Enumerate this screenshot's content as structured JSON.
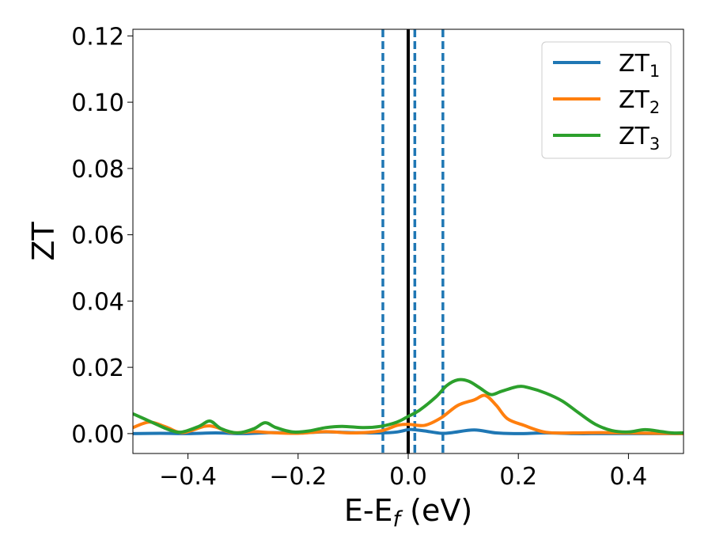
{
  "chart_data": {
    "type": "line",
    "xlabel": {
      "main": "E-E",
      "sub": "f",
      "unit": " (eV)"
    },
    "ylabel": "ZT",
    "xlim": [
      -0.5,
      0.5
    ],
    "ylim": [
      -0.006,
      0.122
    ],
    "x_ticks": [
      -0.4,
      -0.2,
      0.0,
      0.2,
      0.4
    ],
    "x_tick_labels": [
      "−0.4",
      "−0.2",
      "0.0",
      "0.2",
      "0.4"
    ],
    "y_ticks": [
      0.0,
      0.02,
      0.04,
      0.06,
      0.08,
      0.1,
      0.12
    ],
    "y_tick_labels": [
      "0.00",
      "0.02",
      "0.04",
      "0.06",
      "0.08",
      "0.10",
      "0.12"
    ],
    "grid": false,
    "legend_position": "top-right",
    "vlines": [
      {
        "x": 0.0,
        "style": "solid",
        "color": "#000000"
      },
      {
        "x": -0.046,
        "style": "dashed",
        "color": "#1f77b4"
      },
      {
        "x": 0.012,
        "style": "dashed",
        "color": "#1f77b4"
      },
      {
        "x": 0.063,
        "style": "dashed",
        "color": "#1f77b4"
      }
    ],
    "series": [
      {
        "name": "ZT",
        "sub": "1",
        "color": "#1f77b4",
        "points": [
          [
            -0.5,
            0.0
          ],
          [
            -0.45,
            0.0001
          ],
          [
            -0.4,
            0.0
          ],
          [
            -0.35,
            0.0002
          ],
          [
            -0.3,
            0.0
          ],
          [
            -0.25,
            0.0003
          ],
          [
            -0.2,
            0.0002
          ],
          [
            -0.15,
            0.0005
          ],
          [
            -0.1,
            0.0003
          ],
          [
            -0.05,
            0.0002
          ],
          [
            -0.02,
            0.0005
          ],
          [
            0.0,
            0.0012
          ],
          [
            0.01,
            0.0012
          ],
          [
            0.03,
            0.0008
          ],
          [
            0.06,
            0.0001
          ],
          [
            0.08,
            0.0003
          ],
          [
            0.12,
            0.0011
          ],
          [
            0.16,
            0.0002
          ],
          [
            0.2,
            0.0
          ],
          [
            0.25,
            0.0002
          ],
          [
            0.3,
            0.0
          ],
          [
            0.35,
            0.0
          ],
          [
            0.4,
            0.0
          ],
          [
            0.45,
            0.0
          ],
          [
            0.5,
            0.0
          ]
        ]
      },
      {
        "name": "ZT",
        "sub": "2",
        "color": "#ff7f0e",
        "points": [
          [
            -0.5,
            0.0018
          ],
          [
            -0.47,
            0.0035
          ],
          [
            -0.44,
            0.002
          ],
          [
            -0.41,
            0.0003
          ],
          [
            -0.37,
            0.0022
          ],
          [
            -0.35,
            0.002
          ],
          [
            -0.32,
            0.0003
          ],
          [
            -0.28,
            0.0006
          ],
          [
            -0.25,
            0.0003
          ],
          [
            -0.2,
            0.0001
          ],
          [
            -0.15,
            0.0006
          ],
          [
            -0.1,
            0.0002
          ],
          [
            -0.05,
            0.0008
          ],
          [
            -0.02,
            0.0025
          ],
          [
            0.0,
            0.0028
          ],
          [
            0.03,
            0.0025
          ],
          [
            0.06,
            0.0048
          ],
          [
            0.09,
            0.0085
          ],
          [
            0.12,
            0.0102
          ],
          [
            0.14,
            0.0115
          ],
          [
            0.16,
            0.0085
          ],
          [
            0.18,
            0.0045
          ],
          [
            0.21,
            0.0025
          ],
          [
            0.25,
            0.0004
          ],
          [
            0.3,
            0.0002
          ],
          [
            0.35,
            0.0003
          ],
          [
            0.4,
            0.0002
          ],
          [
            0.45,
            0.0001
          ],
          [
            0.5,
            0.0
          ]
        ]
      },
      {
        "name": "ZT",
        "sub": "3",
        "color": "#2ca02c",
        "points": [
          [
            -0.5,
            0.006
          ],
          [
            -0.48,
            0.0045
          ],
          [
            -0.46,
            0.003
          ],
          [
            -0.43,
            0.0009
          ],
          [
            -0.41,
            0.0005
          ],
          [
            -0.38,
            0.0022
          ],
          [
            -0.36,
            0.0038
          ],
          [
            -0.34,
            0.0015
          ],
          [
            -0.31,
            0.0002
          ],
          [
            -0.28,
            0.0015
          ],
          [
            -0.26,
            0.0033
          ],
          [
            -0.24,
            0.0018
          ],
          [
            -0.21,
            0.0005
          ],
          [
            -0.18,
            0.0008
          ],
          [
            -0.15,
            0.0018
          ],
          [
            -0.12,
            0.0022
          ],
          [
            -0.08,
            0.0018
          ],
          [
            -0.05,
            0.0022
          ],
          [
            -0.02,
            0.0035
          ],
          [
            0.0,
            0.0052
          ],
          [
            0.02,
            0.007
          ],
          [
            0.05,
            0.011
          ],
          [
            0.07,
            0.0145
          ],
          [
            0.09,
            0.0162
          ],
          [
            0.11,
            0.0158
          ],
          [
            0.13,
            0.0138
          ],
          [
            0.15,
            0.0118
          ],
          [
            0.17,
            0.0128
          ],
          [
            0.2,
            0.0142
          ],
          [
            0.22,
            0.0138
          ],
          [
            0.25,
            0.0122
          ],
          [
            0.28,
            0.0098
          ],
          [
            0.31,
            0.0062
          ],
          [
            0.34,
            0.0028
          ],
          [
            0.37,
            0.0009
          ],
          [
            0.4,
            0.0005
          ],
          [
            0.43,
            0.0012
          ],
          [
            0.46,
            0.0006
          ],
          [
            0.48,
            0.0002
          ],
          [
            0.5,
            0.0002
          ]
        ]
      }
    ]
  }
}
